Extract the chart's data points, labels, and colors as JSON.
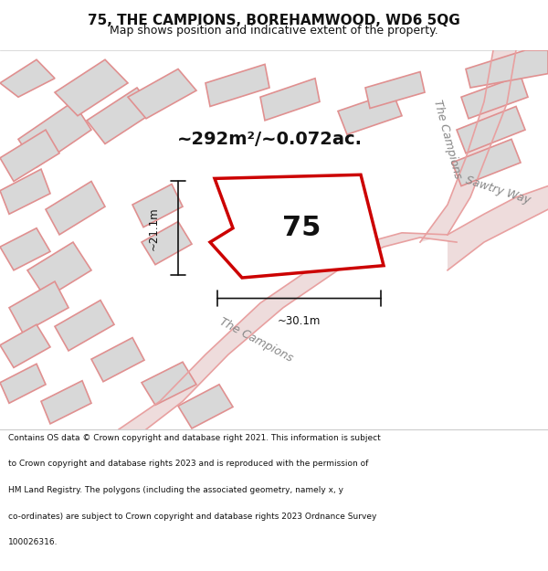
{
  "title_line1": "75, THE CAMPIONS, BOREHAMWOOD, WD6 5QG",
  "title_line2": "Map shows position and indicative extent of the property.",
  "area_text": "~292m²/~0.072ac.",
  "label_75": "75",
  "dim_width": "~30.1m",
  "dim_height": "~21.1m",
  "road_label1": "The Campions",
  "road_label2": "The Campions",
  "road_label3": "Sawtry Way",
  "footer_text": "Contains OS data © Crown copyright and database right 2021. This information is subject to Crown copyright and database rights 2023 and is reproduced with the permission of HM Land Registry. The polygons (including the associated geometry, namely x, y co-ordinates) are subject to Crown copyright and database rights 2023 Ordnance Survey 100026316.",
  "bg_color": "#f0eeee",
  "map_bg": "#f0eeee",
  "block_fill": "#d8d8d8",
  "road_line_color": "#e8a0a0",
  "highlight_fill": "#ffffff",
  "highlight_stroke": "#cc0000",
  "footer_bg": "#ffffff",
  "title_bg": "#ffffff"
}
